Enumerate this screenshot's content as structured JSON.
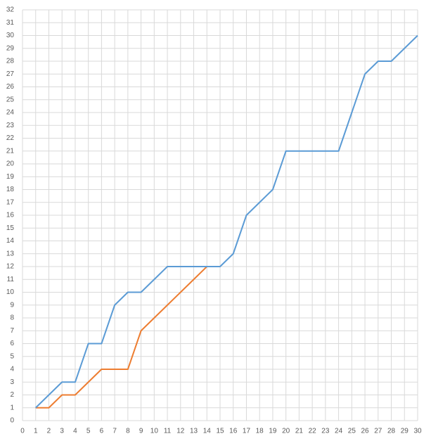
{
  "chart_data": {
    "type": "line",
    "x": [
      1,
      2,
      3,
      4,
      5,
      6,
      7,
      8,
      9,
      10,
      11,
      12,
      13,
      14,
      15,
      16,
      17,
      18,
      19,
      20,
      21,
      22,
      23,
      24,
      25,
      26,
      27,
      28,
      29,
      30
    ],
    "series": [
      {
        "color": "#5b9bd5",
        "values": [
          1,
          2,
          3,
          3,
          6,
          6,
          9,
          10,
          10,
          11,
          12,
          12,
          12,
          12,
          12,
          13,
          16,
          17,
          18,
          21,
          21,
          21,
          21,
          21,
          24,
          27,
          28,
          28,
          29,
          30
        ]
      },
      {
        "color": "#ed7d31",
        "values": [
          1,
          1,
          2,
          2,
          3,
          4,
          4,
          4,
          7,
          8,
          9,
          10,
          11,
          12,
          12,
          null,
          null,
          null,
          null,
          null,
          null,
          null,
          null,
          null,
          null,
          null,
          null,
          null,
          null,
          null
        ]
      }
    ],
    "xlim": [
      0,
      30
    ],
    "xticks": [
      0,
      1,
      2,
      3,
      4,
      5,
      6,
      7,
      8,
      9,
      10,
      11,
      12,
      13,
      14,
      15,
      16,
      17,
      18,
      19,
      20,
      21,
      22,
      23,
      24,
      25,
      26,
      27,
      28,
      29,
      30
    ],
    "ylim": [
      0,
      32
    ],
    "yticks": [
      0,
      1,
      2,
      3,
      4,
      5,
      6,
      7,
      8,
      9,
      10,
      11,
      12,
      13,
      14,
      15,
      16,
      17,
      18,
      19,
      20,
      21,
      22,
      23,
      24,
      25,
      26,
      27,
      28,
      29,
      30,
      31,
      32
    ],
    "grid": true
  }
}
